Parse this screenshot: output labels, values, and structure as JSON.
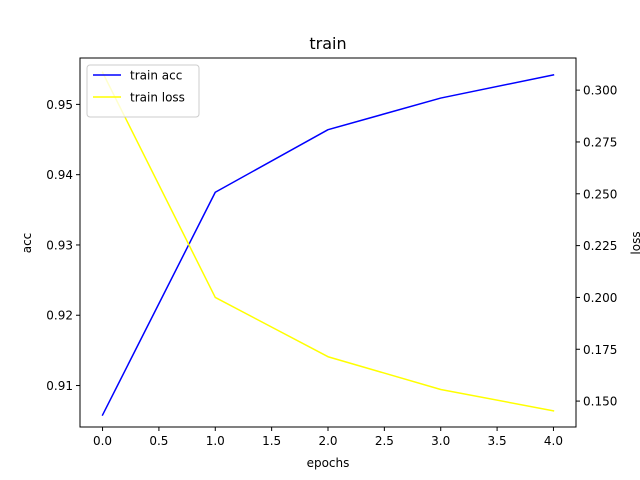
{
  "chart_data": {
    "type": "line",
    "title": "train",
    "xlabel": "epochs",
    "ylabel_left": "acc",
    "ylabel_right": "loss",
    "x": [
      0,
      1,
      2,
      3,
      4
    ],
    "xlim": [
      -0.2,
      4.2
    ],
    "xticks": [
      0.0,
      0.5,
      1.0,
      1.5,
      2.0,
      2.5,
      3.0,
      3.5,
      4.0
    ],
    "xtick_labels": [
      "0.0",
      "0.5",
      "1.0",
      "1.5",
      "2.0",
      "2.5",
      "3.0",
      "3.5",
      "4.0"
    ],
    "ylim_left": [
      0.9041,
      0.9566
    ],
    "yticks_left": [
      0.91,
      0.92,
      0.93,
      0.94,
      0.95
    ],
    "ytick_labels_left": [
      "0.91",
      "0.92",
      "0.93",
      "0.94",
      "0.95"
    ],
    "ylim_right": [
      0.1375,
      0.3155
    ],
    "yticks_right": [
      0.15,
      0.175,
      0.2,
      0.225,
      0.25,
      0.275,
      0.3
    ],
    "ytick_labels_right": [
      "0.150",
      "0.175",
      "0.200",
      "0.225",
      "0.250",
      "0.275",
      "0.300"
    ],
    "grid": false,
    "legend_position": "upper-left",
    "series": [
      {
        "name": "train acc",
        "axis": "left",
        "color": "#0000ff",
        "values": [
          0.9058,
          0.9375,
          0.9464,
          0.9509,
          0.9542
        ]
      },
      {
        "name": "train loss",
        "axis": "right",
        "color": "#ffff00",
        "values": [
          0.3086,
          0.2,
          0.1714,
          0.1556,
          0.1453
        ]
      }
    ]
  }
}
